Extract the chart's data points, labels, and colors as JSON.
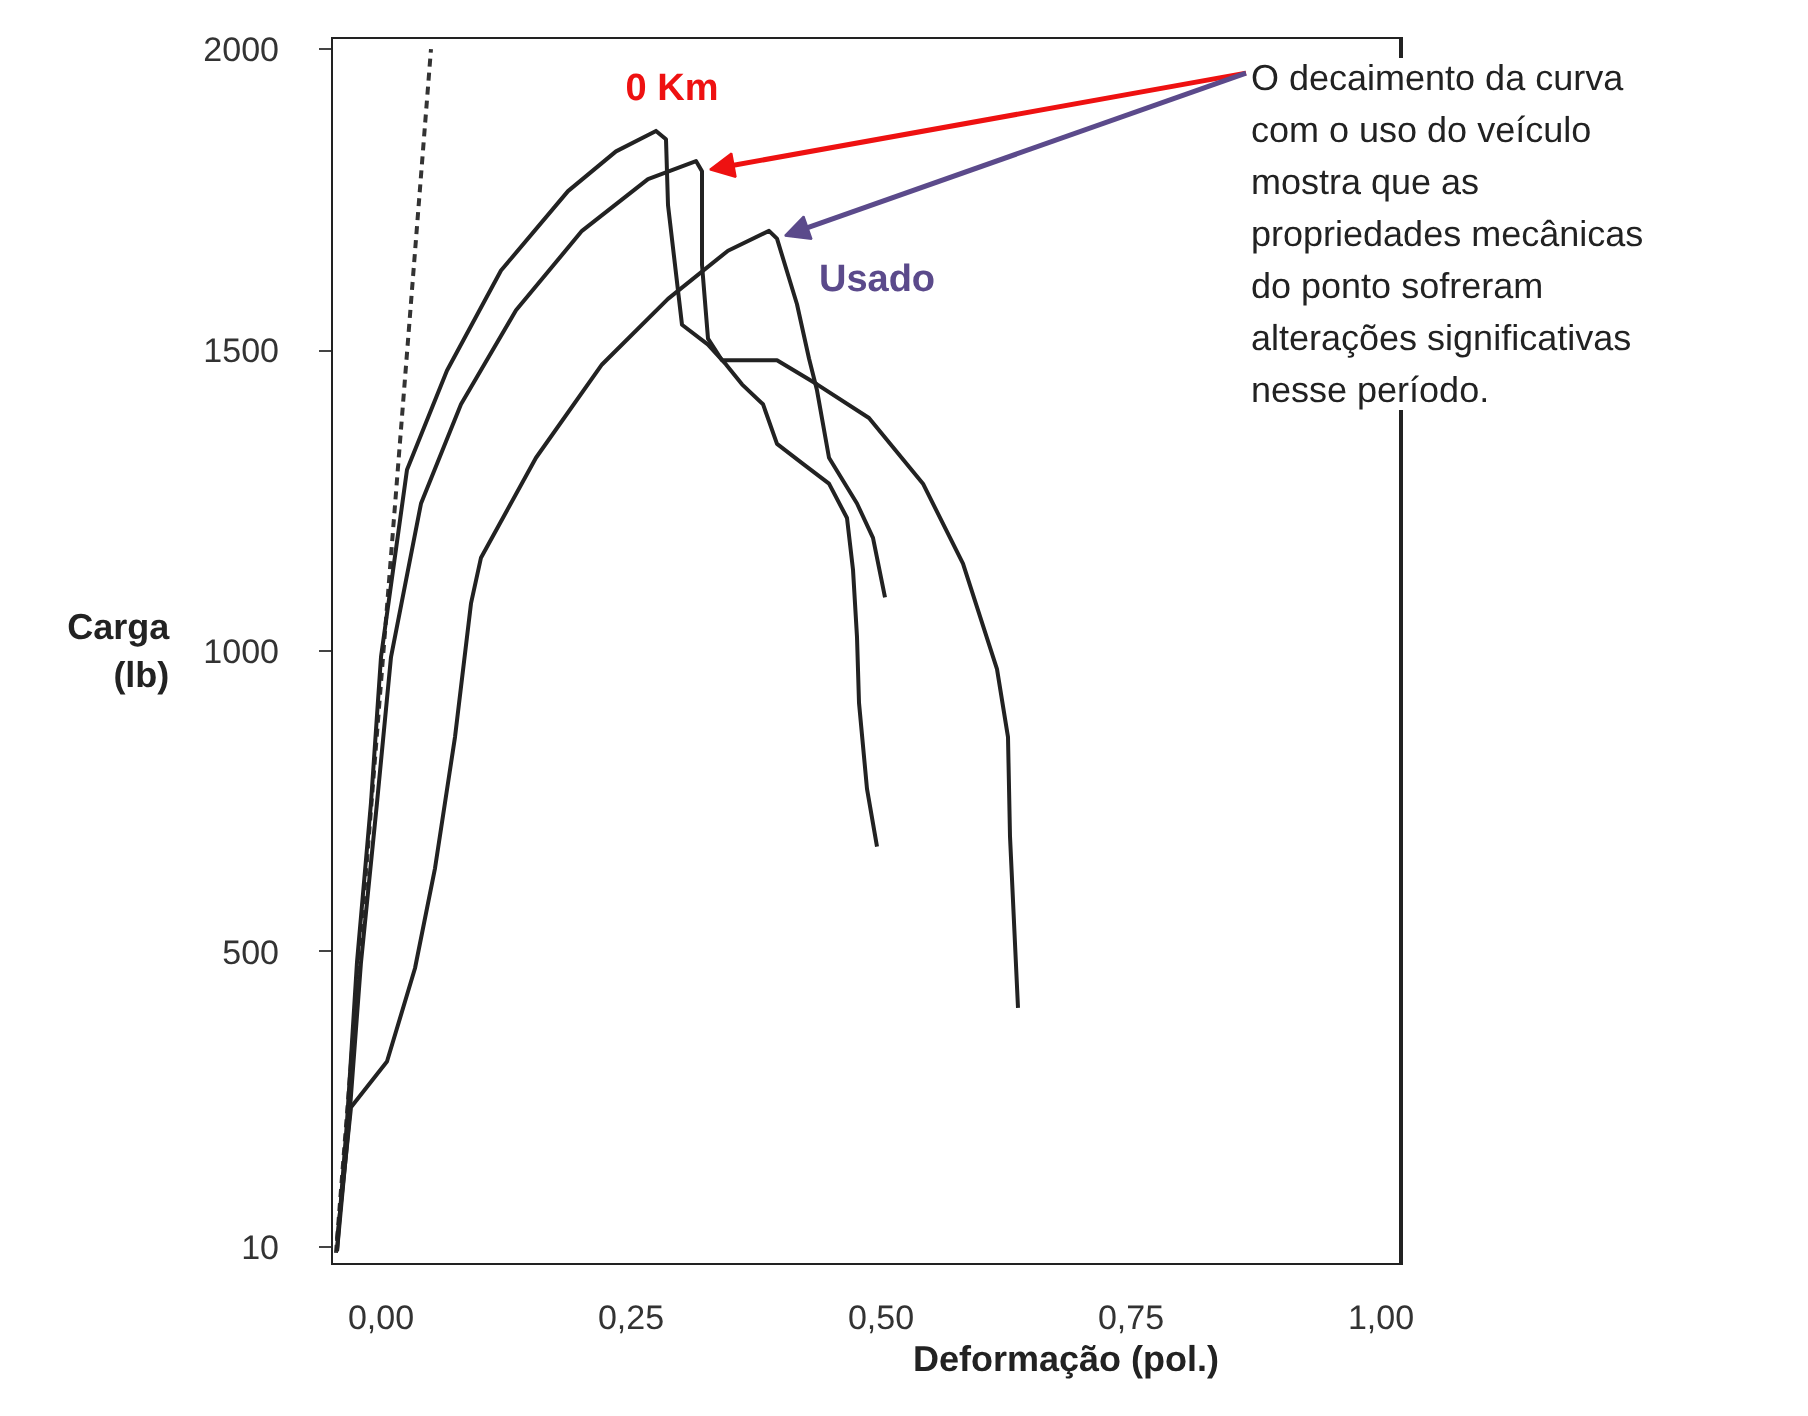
{
  "chart_data": {
    "type": "line",
    "xlabel": "Deformação (pol.)",
    "ylabel": "Carga\n(lb)",
    "xlim": [
      -0.05,
      1.02
    ],
    "ylim": [
      -20,
      2020
    ],
    "xticks": [
      {
        "value": 0,
        "label": "0,00"
      },
      {
        "value": 0.25,
        "label": "0,25"
      },
      {
        "value": 0.5,
        "label": "0,50"
      },
      {
        "value": 0.75,
        "label": "0,75"
      },
      {
        "value": 1,
        "label": "1,00"
      }
    ],
    "yticks": [
      10,
      500,
      1000,
      1500,
      2000
    ],
    "grid": false,
    "series": [
      {
        "color": "#333333",
        "line_style": "dashed",
        "x": [
          -0.045,
          0.05
        ],
        "values": [
          0,
          2000
        ]
      },
      {
        "color": "#222222",
        "line_style": "solid",
        "x": [
          -0.044,
          -0.034,
          -0.024,
          -0.01,
          0.0,
          0.026,
          0.066,
          0.12,
          0.187,
          0.235,
          0.275,
          0.285,
          0.287,
          0.301,
          0.327,
          0.345,
          0.361,
          0.382,
          0.396,
          0.422,
          0.448,
          0.466,
          0.472,
          0.476,
          0.478,
          0.486,
          0.496
        ],
        "values": [
          3,
          218,
          483,
          748,
          990,
          1301,
          1466,
          1632,
          1764,
          1830,
          1864,
          1850,
          1741,
          1542,
          1509,
          1476,
          1443,
          1410,
          1344,
          1311,
          1278,
          1221,
          1135,
          1023,
          914,
          771,
          675
        ]
      },
      {
        "color": "#222222",
        "line_style": "solid",
        "x": [
          -0.044,
          -0.032,
          -0.02,
          -0.004,
          0.01,
          0.04,
          0.08,
          0.135,
          0.201,
          0.267,
          0.315,
          0.321,
          0.321,
          0.327,
          0.341,
          0.396,
          0.436,
          0.488,
          0.542,
          0.582,
          0.616,
          0.627,
          0.629,
          0.637
        ],
        "values": [
          3,
          218,
          483,
          748,
          990,
          1245,
          1410,
          1566,
          1698,
          1784,
          1814,
          1797,
          1642,
          1519,
          1483,
          1483,
          1443,
          1387,
          1278,
          1145,
          970,
          857,
          692,
          407
        ]
      },
      {
        "color": "#222222",
        "line_style": "solid",
        "x": [
          -0.044,
          -0.03,
          0.006,
          0.034,
          0.054,
          0.074,
          0.09,
          0.1,
          0.155,
          0.221,
          0.287,
          0.347,
          0.388,
          0.396,
          0.416,
          0.428,
          0.436,
          0.448,
          0.476,
          0.492,
          0.504
        ],
        "values": [
          20,
          242,
          318,
          473,
          639,
          857,
          1079,
          1155,
          1321,
          1476,
          1585,
          1665,
          1698,
          1685,
          1576,
          1486,
          1433,
          1321,
          1245,
          1188,
          1089
        ]
      }
    ],
    "annotations": [
      {
        "text": "0 Km",
        "x": 0.321,
        "y": 1800
      },
      {
        "text": "Usado",
        "x": 0.396,
        "y": 1690
      },
      "O decaimento da curva\ncom o uso do veículo\nmostra que as\npropriedades mecânicas\ndo ponto sofreram\nalterações significativas\nnesse período."
    ]
  }
}
